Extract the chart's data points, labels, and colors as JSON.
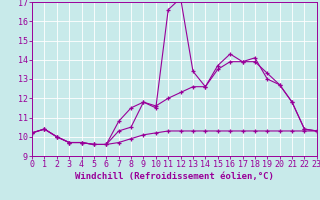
{
  "xlabel": "Windchill (Refroidissement éolien,°C)",
  "x": [
    0,
    1,
    2,
    3,
    4,
    5,
    6,
    7,
    8,
    9,
    10,
    11,
    12,
    13,
    14,
    15,
    16,
    17,
    18,
    19,
    20,
    21,
    22,
    23
  ],
  "line1": [
    10.2,
    10.4,
    10.0,
    9.7,
    9.7,
    9.6,
    9.6,
    10.3,
    10.5,
    11.8,
    11.5,
    16.6,
    17.2,
    13.4,
    12.6,
    13.7,
    14.3,
    13.9,
    14.1,
    13.0,
    12.7,
    11.8,
    10.4,
    10.3
  ],
  "line2": [
    10.2,
    10.4,
    10.0,
    9.7,
    9.7,
    9.6,
    9.6,
    10.8,
    11.5,
    11.8,
    11.6,
    12.0,
    12.3,
    12.6,
    12.6,
    13.5,
    13.9,
    13.9,
    13.9,
    13.3,
    12.7,
    11.8,
    10.4,
    10.3
  ],
  "line3": [
    10.2,
    10.4,
    10.0,
    9.7,
    9.7,
    9.6,
    9.6,
    9.7,
    9.9,
    10.1,
    10.2,
    10.3,
    10.3,
    10.3,
    10.3,
    10.3,
    10.3,
    10.3,
    10.3,
    10.3,
    10.3,
    10.3,
    10.3,
    10.3
  ],
  "ylim": [
    9,
    17
  ],
  "xlim": [
    0,
    23
  ],
  "yticks": [
    9,
    10,
    11,
    12,
    13,
    14,
    15,
    16,
    17
  ],
  "xticks": [
    0,
    1,
    2,
    3,
    4,
    5,
    6,
    7,
    8,
    9,
    10,
    11,
    12,
    13,
    14,
    15,
    16,
    17,
    18,
    19,
    20,
    21,
    22,
    23
  ],
  "line_color": "#990099",
  "bg_color": "#c8eaea",
  "grid_color": "#ffffff",
  "xlabel_fontsize": 6.5,
  "tick_fontsize": 6
}
